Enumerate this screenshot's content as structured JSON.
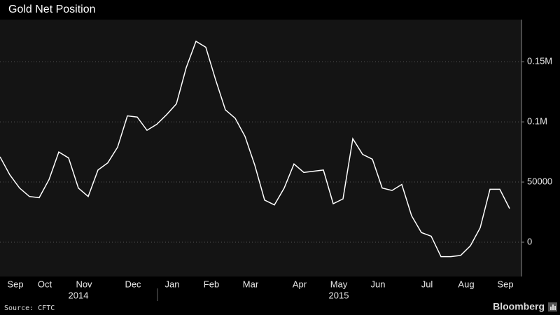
{
  "chart_data": {
    "type": "line",
    "title": "Gold Net Position",
    "categories": [
      null,
      null,
      "Sep",
      null,
      null,
      "Oct",
      null,
      null,
      null,
      "Nov",
      null,
      null,
      null,
      null,
      "Dec",
      null,
      null,
      null,
      "Jan",
      null,
      null,
      null,
      "Feb",
      null,
      null,
      null,
      "Mar",
      null,
      null,
      null,
      null,
      "Apr",
      null,
      null,
      null,
      "May",
      null,
      null,
      null,
      "Jun",
      null,
      null,
      null,
      null,
      "Jul",
      null,
      null,
      null,
      "Aug",
      null,
      null,
      null,
      "Sep"
    ],
    "year_labels": [
      "2014",
      "2015"
    ],
    "values": [
      71000,
      56000,
      45000,
      38000,
      37000,
      52000,
      75000,
      70000,
      45000,
      38000,
      60000,
      66000,
      79000,
      105000,
      104000,
      93000,
      98000,
      106000,
      115000,
      145000,
      167000,
      162000,
      135000,
      110000,
      103000,
      88000,
      64000,
      35000,
      31000,
      45000,
      65000,
      58000,
      59000,
      60000,
      32000,
      36000,
      86000,
      73000,
      69000,
      45000,
      43000,
      48000,
      22000,
      8000,
      5000,
      -12000,
      -12000,
      -11000,
      -3000,
      12000,
      44000,
      44000,
      28000
    ],
    "color": "#ffffff",
    "ylim": [
      -28500,
      185000
    ],
    "yticks": [
      0,
      50000,
      {
        "value": 100000,
        "label": "0.1M"
      },
      {
        "value": 150000,
        "label": "0.15M"
      }
    ],
    "grid": true,
    "source": "Source: CFTC",
    "brand": "Bloomberg"
  }
}
